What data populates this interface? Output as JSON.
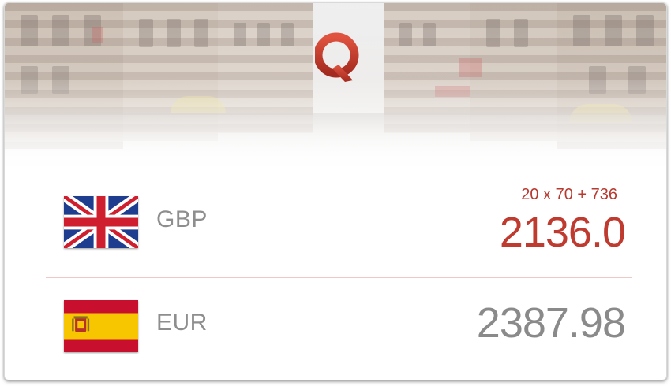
{
  "app": {
    "logo_letter": "Q",
    "accent_color": "#bf3a2f"
  },
  "rows": [
    {
      "code": "GBP",
      "flag_icon": "uk-flag-icon",
      "formula": "20 x 70 + 736",
      "amount": "2136.0"
    },
    {
      "code": "EUR",
      "flag_icon": "spain-flag-icon",
      "amount": "2387.98"
    }
  ]
}
